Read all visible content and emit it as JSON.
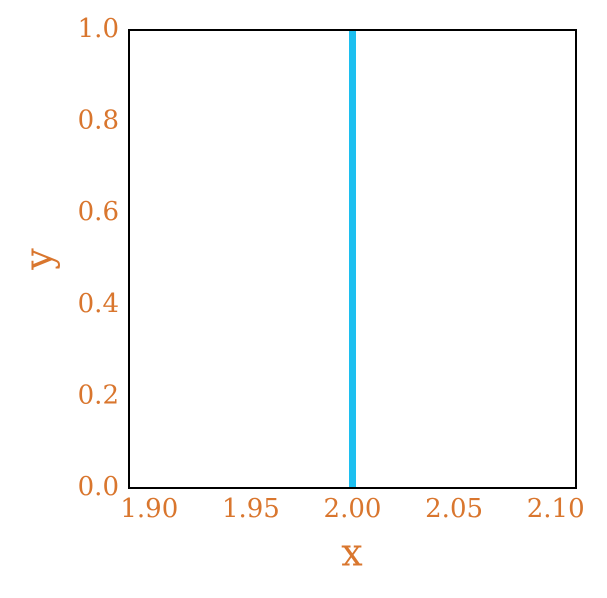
{
  "chart_data": {
    "type": "line",
    "x_label": "x",
    "y_label": "y",
    "x": [
      2.0,
      2.0
    ],
    "series": [
      {
        "color": "#1cbff0",
        "values": [
          0.0,
          1.0
        ]
      }
    ],
    "xlim": [
      1.89,
      2.11
    ],
    "xticks": [
      {
        "value": 1.9,
        "label": "1.90"
      },
      {
        "value": 1.95,
        "label": "1.95"
      },
      {
        "value": 2.0,
        "label": "2.00"
      },
      {
        "value": 2.05,
        "label": "2.05"
      },
      {
        "value": 2.1,
        "label": "2.10"
      }
    ],
    "ylim": [
      0,
      1
    ],
    "yticks": [
      {
        "value": 0,
        "label": "0.0"
      },
      {
        "value": 0.2,
        "label": "0.2"
      },
      {
        "value": 0.4,
        "label": "0.4"
      },
      {
        "value": 0.6,
        "label": "0.6"
      },
      {
        "value": 0.8,
        "label": "0.8"
      },
      {
        "value": 1,
        "label": "1.0"
      }
    ],
    "grid": false,
    "label_color": "#d9762e"
  }
}
